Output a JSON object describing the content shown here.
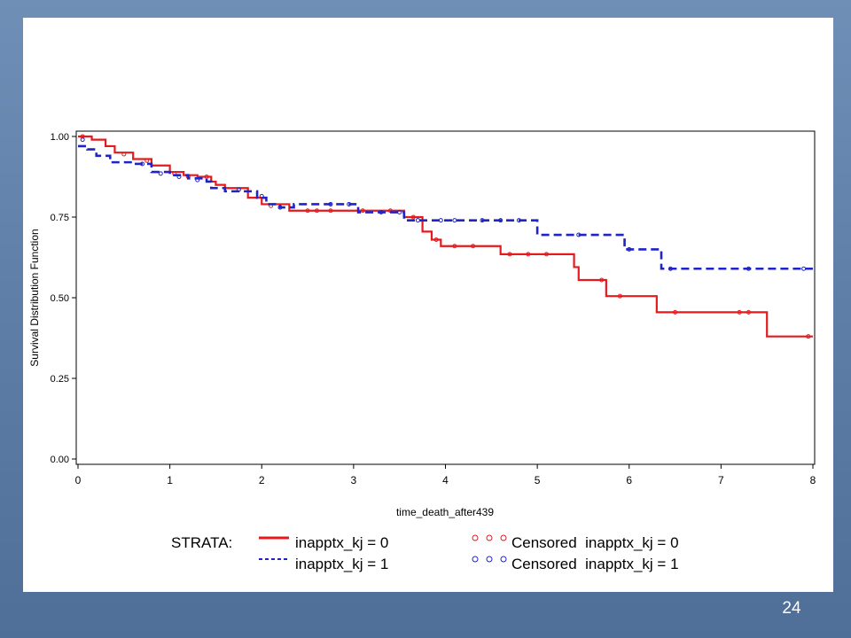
{
  "page_number": "24",
  "colors": {
    "background": "#5f7fa8",
    "series0": "#e41a1c",
    "series1": "#1f24c8"
  },
  "chart_data": {
    "type": "line",
    "xlabel": "time_death_after439",
    "ylabel": "Survival Distribution Function",
    "xlim": [
      0,
      8
    ],
    "ylim": [
      0,
      1
    ],
    "x_ticks": [
      "0",
      "1",
      "2",
      "3",
      "4",
      "5",
      "6",
      "7",
      "8"
    ],
    "y_ticks": [
      "0.00",
      "0.25",
      "0.50",
      "0.75",
      "1.00"
    ],
    "legend": {
      "title": "STRATA:",
      "items": [
        {
          "style": "solid-line",
          "label": "inapptx_kj = 0"
        },
        {
          "style": "dashed-line",
          "label": "inapptx_kj = 1"
        },
        {
          "style": "circles-red",
          "label": "Censored  inapptx_kj = 0"
        },
        {
          "style": "circles-blue",
          "label": "Censored  inapptx_kj = 1"
        }
      ]
    },
    "series": [
      {
        "name": "inapptx_kj = 0",
        "color": "#e41a1c",
        "style": "solid",
        "steps": [
          [
            0,
            1.0
          ],
          [
            0.15,
            0.99
          ],
          [
            0.3,
            0.97
          ],
          [
            0.4,
            0.95
          ],
          [
            0.6,
            0.93
          ],
          [
            0.8,
            0.91
          ],
          [
            1.0,
            0.89
          ],
          [
            1.15,
            0.88
          ],
          [
            1.3,
            0.875
          ],
          [
            1.45,
            0.86
          ],
          [
            1.5,
            0.85
          ],
          [
            1.6,
            0.84
          ],
          [
            1.85,
            0.81
          ],
          [
            2.0,
            0.79
          ],
          [
            2.3,
            0.77
          ],
          [
            3.55,
            0.75
          ],
          [
            3.75,
            0.705
          ],
          [
            3.85,
            0.68
          ],
          [
            3.95,
            0.66
          ],
          [
            4.6,
            0.635
          ],
          [
            5.4,
            0.595
          ],
          [
            5.45,
            0.555
          ],
          [
            5.75,
            0.505
          ],
          [
            6.3,
            0.455
          ],
          [
            7.5,
            0.38
          ]
        ],
        "end": 8.0,
        "censored": [
          [
            0.05,
            1.0
          ],
          [
            0.5,
            0.945
          ],
          [
            0.75,
            0.925
          ],
          [
            1.05,
            0.885
          ],
          [
            1.2,
            0.875
          ],
          [
            1.4,
            0.875
          ],
          [
            2.1,
            0.785
          ],
          [
            2.5,
            0.77
          ],
          [
            2.6,
            0.77
          ],
          [
            2.75,
            0.77
          ],
          [
            3.1,
            0.77
          ],
          [
            3.4,
            0.77
          ],
          [
            3.65,
            0.75
          ],
          [
            3.9,
            0.68
          ],
          [
            4.1,
            0.66
          ],
          [
            4.3,
            0.66
          ],
          [
            4.7,
            0.635
          ],
          [
            4.9,
            0.635
          ],
          [
            5.1,
            0.635
          ],
          [
            5.7,
            0.555
          ],
          [
            5.9,
            0.505
          ],
          [
            6.5,
            0.455
          ],
          [
            7.2,
            0.455
          ],
          [
            7.3,
            0.455
          ],
          [
            7.95,
            0.38
          ]
        ]
      },
      {
        "name": "inapptx_kj = 1",
        "color": "#1f24c8",
        "style": "dashed",
        "steps": [
          [
            0,
            0.97
          ],
          [
            0.1,
            0.96
          ],
          [
            0.2,
            0.94
          ],
          [
            0.35,
            0.92
          ],
          [
            0.6,
            0.915
          ],
          [
            0.8,
            0.89
          ],
          [
            1.0,
            0.88
          ],
          [
            1.2,
            0.87
          ],
          [
            1.4,
            0.86
          ],
          [
            1.45,
            0.84
          ],
          [
            1.6,
            0.83
          ],
          [
            1.95,
            0.81
          ],
          [
            2.05,
            0.79
          ],
          [
            2.2,
            0.78
          ],
          [
            2.35,
            0.79
          ],
          [
            3.05,
            0.765
          ],
          [
            3.55,
            0.74
          ],
          [
            5.0,
            0.695
          ],
          [
            5.95,
            0.65
          ],
          [
            6.35,
            0.59
          ]
        ],
        "end": 8.0,
        "censored": [
          [
            0.05,
            0.99
          ],
          [
            0.7,
            0.915
          ],
          [
            0.9,
            0.885
          ],
          [
            1.1,
            0.875
          ],
          [
            1.3,
            0.865
          ],
          [
            1.75,
            0.835
          ],
          [
            2.0,
            0.815
          ],
          [
            2.2,
            0.78
          ],
          [
            2.75,
            0.79
          ],
          [
            2.95,
            0.79
          ],
          [
            3.3,
            0.765
          ],
          [
            3.5,
            0.765
          ],
          [
            3.7,
            0.74
          ],
          [
            3.95,
            0.74
          ],
          [
            4.1,
            0.74
          ],
          [
            4.4,
            0.74
          ],
          [
            4.6,
            0.74
          ],
          [
            4.8,
            0.74
          ],
          [
            5.45,
            0.695
          ],
          [
            6.0,
            0.65
          ],
          [
            6.45,
            0.59
          ],
          [
            7.3,
            0.59
          ],
          [
            7.9,
            0.59
          ]
        ]
      }
    ]
  }
}
